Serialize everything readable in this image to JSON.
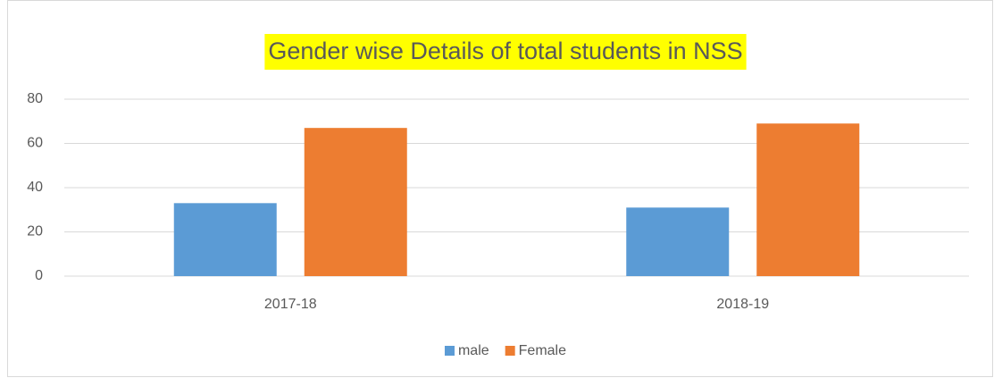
{
  "chart_data": {
    "type": "bar",
    "title": "Gender wise Details of total students in NSS",
    "title_highlight": "#ffff00",
    "categories": [
      "2017-18",
      "2018-19"
    ],
    "series": [
      {
        "name": "male",
        "color": "#5b9bd5",
        "values": [
          33,
          31
        ]
      },
      {
        "name": "Female",
        "color": "#ed7d31",
        "values": [
          67,
          69
        ]
      }
    ],
    "ylim": [
      0,
      80
    ],
    "yticks": [
      0,
      20,
      40,
      60,
      80
    ],
    "grid": true,
    "legend": "bottom"
  }
}
